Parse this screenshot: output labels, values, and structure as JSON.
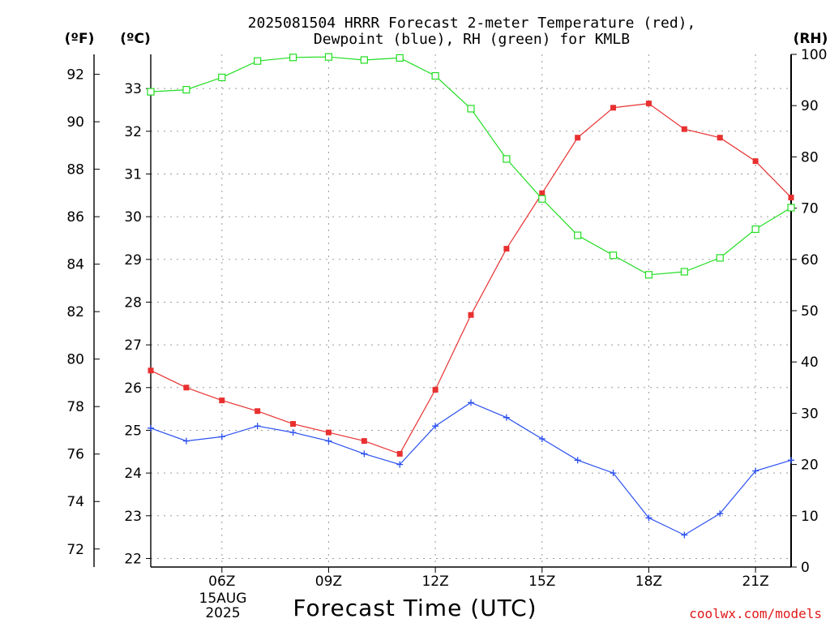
{
  "title": {
    "line1": "2025081504 HRRR Forecast 2-meter Temperature (red),",
    "line2": "Dewpoint (blue), RH (green) for KMLB"
  },
  "units": {
    "fahrenheit": "(ºF)",
    "celsius": "(ºC)",
    "rh": "(RH)"
  },
  "xlabel": "Forecast Time (UTC)",
  "date_label": {
    "day": "15AUG",
    "year": "2025"
  },
  "credit": "coolwx.com/models",
  "colors": {
    "temperature": "#e83030",
    "dewpoint": "#2a4ff0",
    "rh": "#22dd22",
    "grid": "#9a9a9a"
  },
  "chart_data": {
    "type": "line",
    "x": [
      4,
      5,
      6,
      7,
      8,
      9,
      10,
      11,
      12,
      13,
      14,
      15,
      16,
      17,
      18,
      19,
      20,
      21,
      22
    ],
    "xlim": [
      4,
      22
    ],
    "x_ticks": [
      {
        "value": 6,
        "label": "06Z"
      },
      {
        "value": 9,
        "label": "09Z"
      },
      {
        "value": 12,
        "label": "12Z"
      },
      {
        "value": 15,
        "label": "15Z"
      },
      {
        "value": 18,
        "label": "18Z"
      },
      {
        "value": 21,
        "label": "21Z"
      }
    ],
    "y_fahrenheit_ticks": [
      72,
      74,
      76,
      78,
      80,
      82,
      84,
      86,
      88,
      90,
      92
    ],
    "y_celsius_ticks": [
      22,
      23,
      24,
      25,
      26,
      27,
      28,
      29,
      30,
      31,
      32,
      33
    ],
    "y_celsius_range": [
      21.8,
      33.8
    ],
    "y_rh_ticks": [
      0,
      10,
      20,
      30,
      40,
      50,
      60,
      70,
      80,
      90,
      100
    ],
    "grid": true,
    "series": [
      {
        "name": "Temperature",
        "key": "temperature",
        "axis": "celsius",
        "marker": "filled-square",
        "values": [
          26.4,
          26.0,
          25.7,
          25.45,
          25.15,
          24.95,
          24.75,
          24.45,
          25.95,
          27.7,
          29.25,
          30.55,
          31.85,
          32.55,
          32.65,
          32.05,
          31.85,
          31.3,
          30.45
        ]
      },
      {
        "name": "Dewpoint",
        "key": "dewpoint",
        "axis": "celsius",
        "marker": "plus",
        "values": [
          25.05,
          24.75,
          24.85,
          25.1,
          24.95,
          24.75,
          24.45,
          24.2,
          25.1,
          25.65,
          25.3,
          24.8,
          24.3,
          24.0,
          22.95,
          22.55,
          23.05,
          24.05,
          24.3
        ]
      },
      {
        "name": "RH",
        "key": "rh",
        "axis": "rh",
        "marker": "open-square",
        "values": [
          92.7,
          93.1,
          95.5,
          98.7,
          99.4,
          99.5,
          98.9,
          99.3,
          95.8,
          89.4,
          79.6,
          71.8,
          64.7,
          60.8,
          57.0,
          57.6,
          60.3,
          65.9,
          70.1
        ]
      }
    ]
  }
}
